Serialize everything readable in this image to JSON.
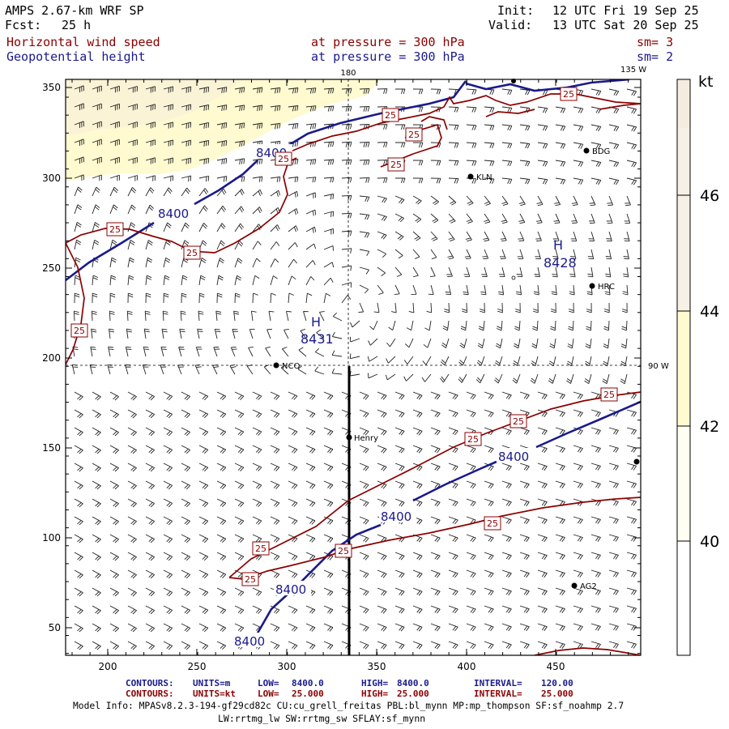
{
  "header": {
    "model_line": "AMPS 2.67-km WRF SP",
    "forecast_label": "Fcst:",
    "forecast_hours": "25 h",
    "init_label": "Init:",
    "init_time": "12 UTC Fri 19 Sep 25",
    "valid_label": "Valid:",
    "valid_time": "13 UTC Sat 20 Sep 25",
    "field1_name": "Horizontal wind speed",
    "field1_level": "at pressure =  300 hPa",
    "field1_smooth": "sm= 3",
    "field2_name": "Geopotential height",
    "field2_level": "at pressure =  300 hPa",
    "field2_smooth": "sm= 2"
  },
  "map": {
    "x_ticks": [
      "200",
      "250",
      "300",
      "350",
      "400",
      "450"
    ],
    "y_ticks": [
      "50",
      "100",
      "150",
      "200",
      "250",
      "300",
      "350"
    ],
    "meridian_label_top": "180",
    "meridian_label_topright": "135 W",
    "parallel_label_right": "90 W",
    "highs": [
      {
        "symbol": "H",
        "value": "8431"
      },
      {
        "symbol": "H",
        "value": "8428"
      }
    ],
    "height_contour_labels": [
      "8400",
      "8400",
      "8400",
      "8400",
      "8400",
      "8400"
    ],
    "speed_contour_label": "25",
    "stations": [
      "NCO",
      "Henry",
      "KLN",
      "BDG",
      "HRC",
      "AG2"
    ]
  },
  "colorbar": {
    "unit": "kt",
    "ticks": [
      "46",
      "44",
      "42",
      "40"
    ],
    "colors": {
      "low": "#ffffff",
      "mid": "#fffad0",
      "high": "#f4ecdf"
    }
  },
  "footer": {
    "row1": {
      "label": "CONTOURS:",
      "units": "UNITS=m",
      "low_label": "LOW=",
      "low": "8400.0",
      "high_label": "HIGH=",
      "high": "8400.0",
      "interval_label": "INTERVAL=",
      "interval": "120.00"
    },
    "row2": {
      "label": "CONTOURS:",
      "units": "UNITS=kt",
      "low_label": "LOW=",
      "low": "25.000",
      "high_label": "HIGH=",
      "high": "25.000",
      "interval_label": "INTERVAL=",
      "interval": "25.000"
    },
    "model_info": "Model Info: MPASv8.2.3-194-gf29cd82c CU:cu_grell_freitas PBL:bl_mynn MP:mp_thompson SF:sf_noahmp 2.7",
    "model_info2": "LW:rrtmg_lw SW:rrtmg_sw SFLAY:sf_mynn"
  },
  "colors": {
    "height_contour": "#1a1a8c",
    "speed_contour": "#8b0000",
    "shade_fill": "#fffad0"
  }
}
